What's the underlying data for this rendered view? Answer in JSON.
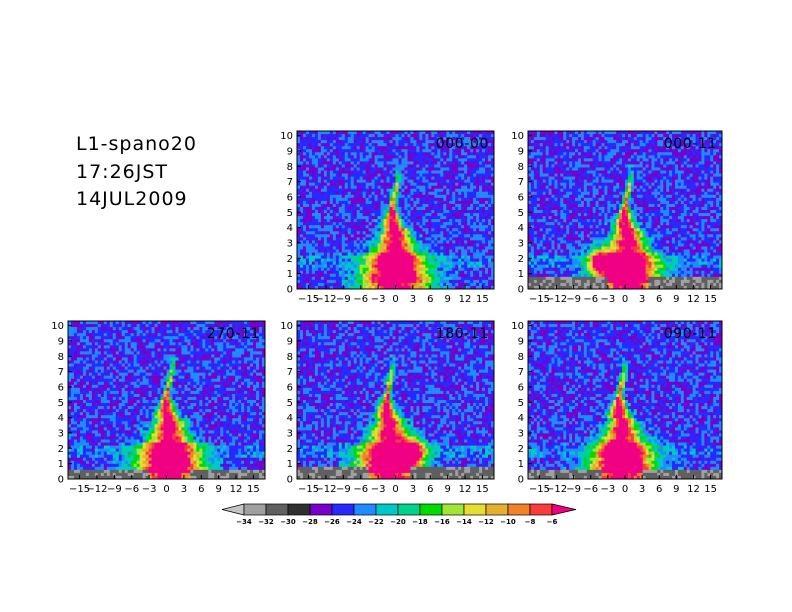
{
  "header": {
    "line1": "L1-spano20",
    "line2": "17:26JST",
    "line3": "14JUL2009"
  },
  "chart_data": {
    "type": "heatmap",
    "x_ticks": [
      "-15",
      "-12",
      "-9",
      "-6",
      "-3",
      "0",
      "3",
      "6",
      "9",
      "12",
      "15"
    ],
    "y_ticks": [
      "0",
      "1",
      "2",
      "3",
      "4",
      "5",
      "6",
      "7",
      "8",
      "9",
      "10"
    ],
    "xlim": [
      -17,
      17
    ],
    "ylim": [
      0,
      10.3
    ],
    "panels": [
      {
        "label": "000-00",
        "center_x": 0,
        "lobe_x": null,
        "surface_band": 0
      },
      {
        "label": "000-11",
        "center_x": 0.5,
        "lobe_x": -4.5,
        "surface_band": 0.8
      },
      {
        "label": "270-11",
        "center_x": 0.5,
        "lobe_x": null,
        "surface_band": 0.55
      },
      {
        "label": "180-11",
        "center_x": -1,
        "lobe_x": 3,
        "surface_band": 0.7
      },
      {
        "label": "090-11",
        "center_x": -0.5,
        "lobe_x": null,
        "surface_band": 0.65
      }
    ],
    "colorbar": {
      "labels": [
        "-34",
        "-32",
        "-30",
        "-28",
        "-26",
        "-24",
        "-22",
        "-20",
        "-18",
        "-16",
        "-14",
        "-12",
        "-10",
        "-8",
        "-6"
      ],
      "colors": [
        "#c4c4c4",
        "#a0a0a0",
        "#606060",
        "#303030",
        "#7800c8",
        "#2828ff",
        "#1e8cff",
        "#00c8c8",
        "#00d28c",
        "#00dc00",
        "#a0e632",
        "#e6dc32",
        "#e6af2d",
        "#f08228",
        "#fa3c3c",
        "#f00082"
      ]
    }
  }
}
